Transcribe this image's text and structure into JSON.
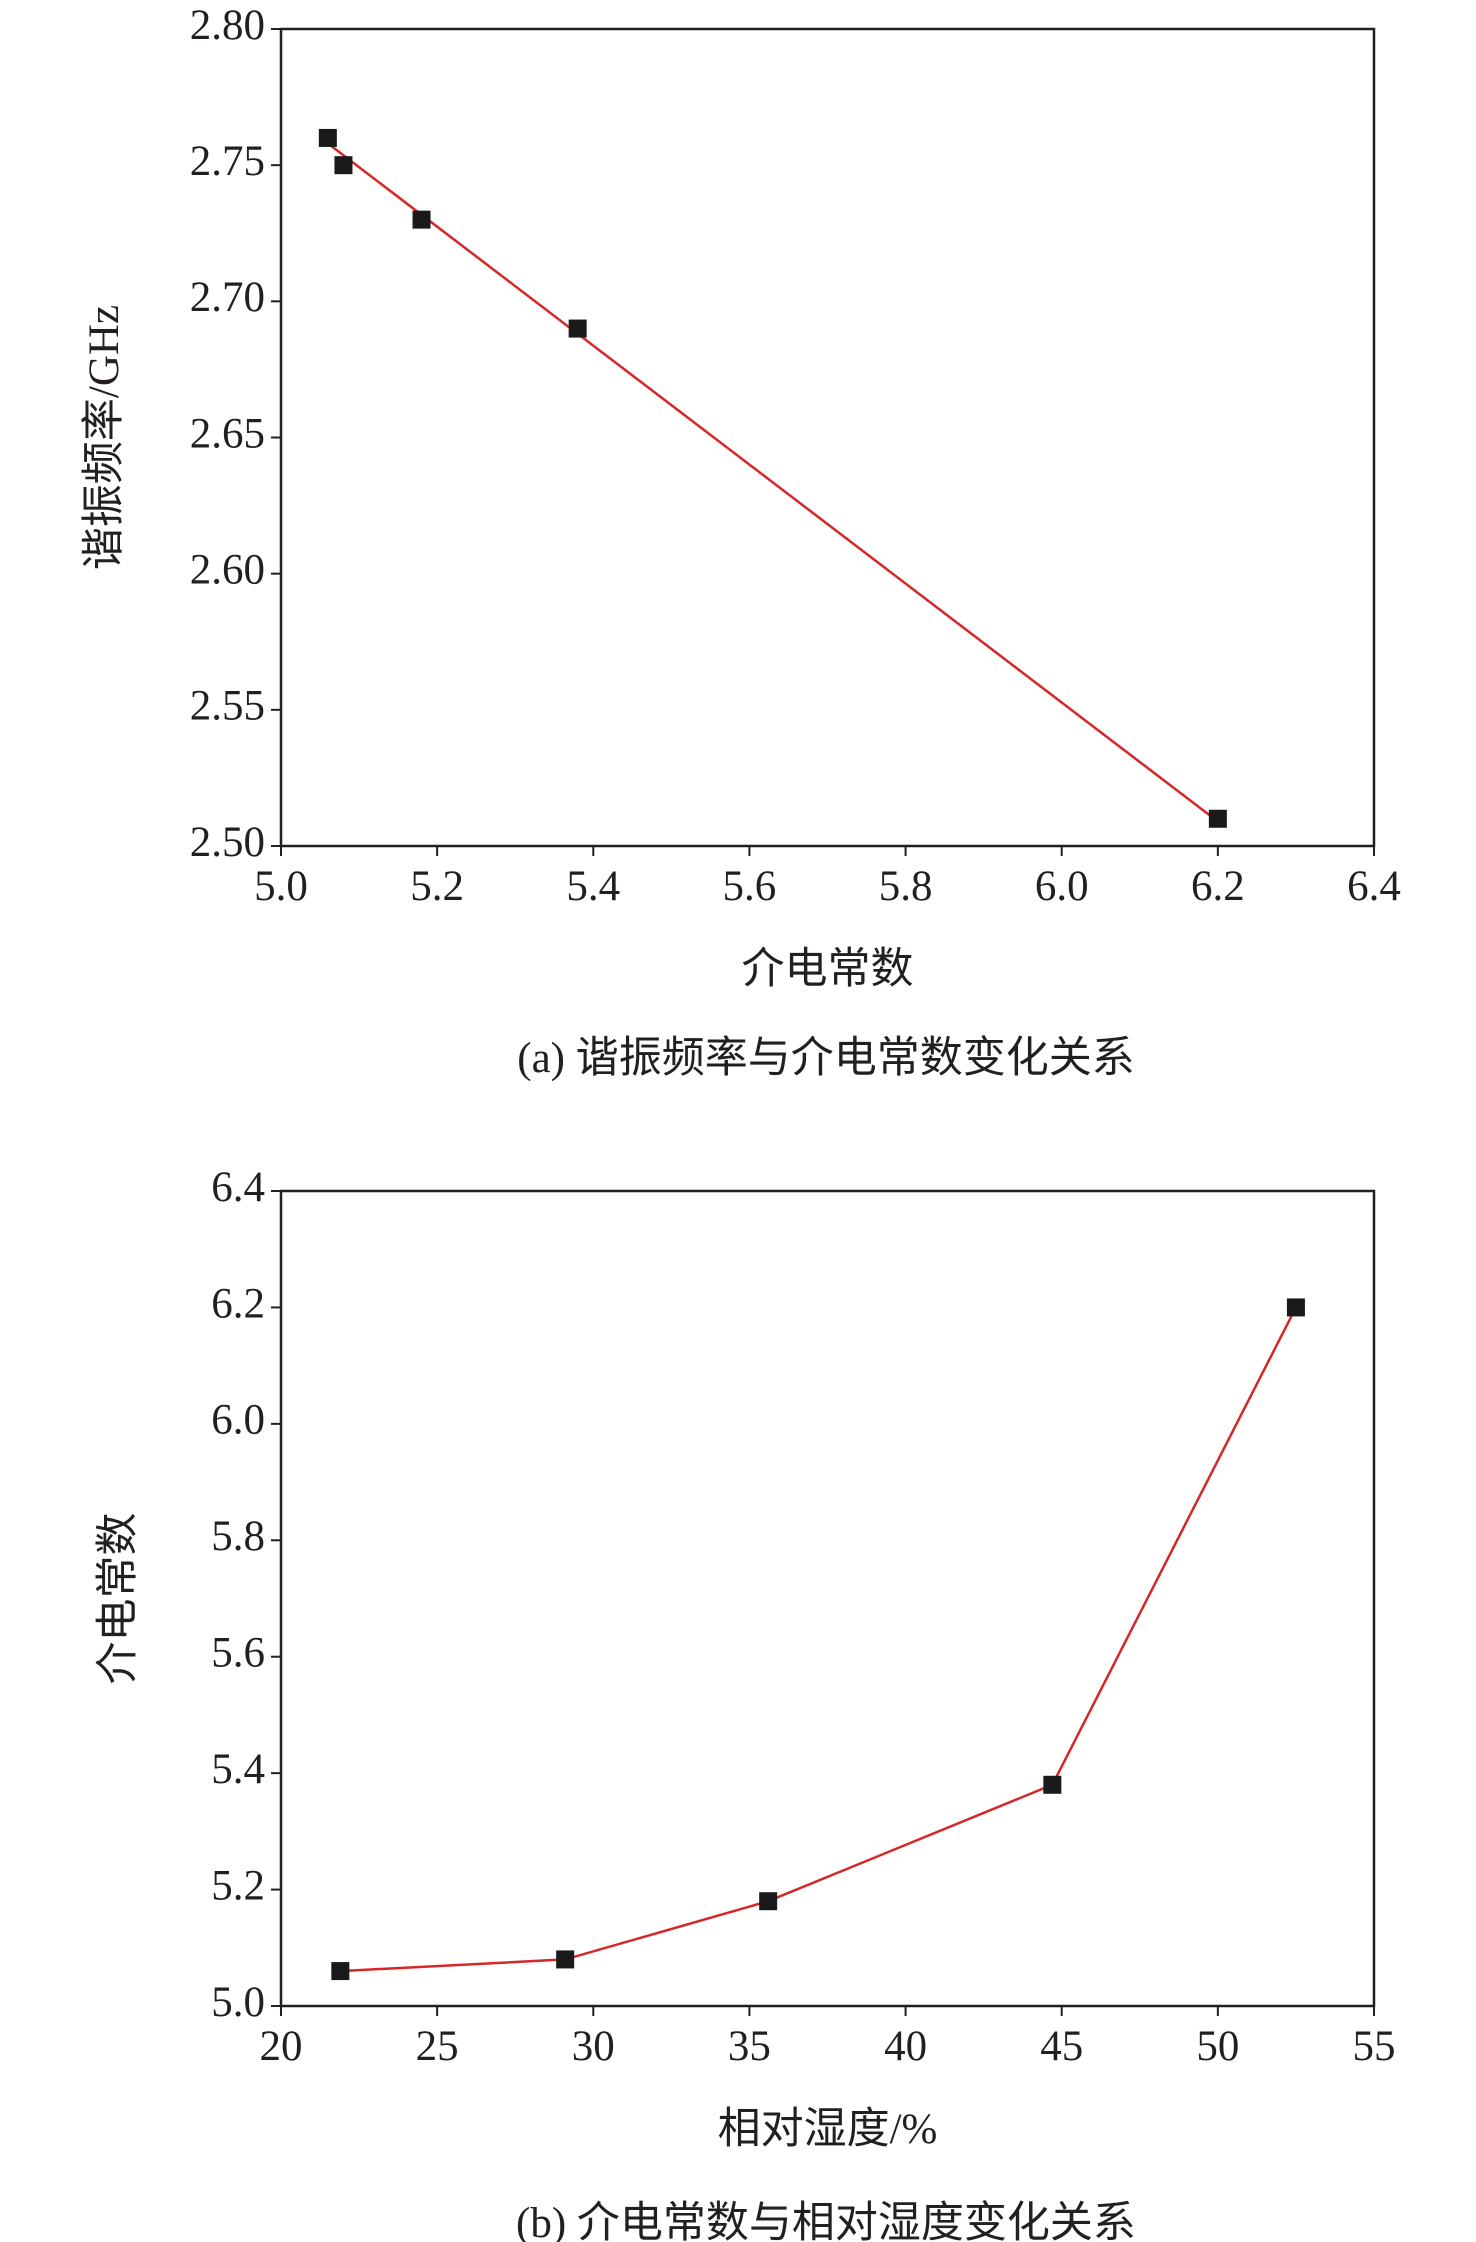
{
  "chart_data": [
    {
      "type": "scatter",
      "ylabel": "谐振频率/GHz",
      "xlabel": "介电常数",
      "caption": "(a) 谐振频率与介电常数变化关系",
      "x": [
        5.06,
        5.08,
        5.18,
        5.38,
        6.2
      ],
      "series": [
        {
          "color": "#1a1a1a",
          "values": [
            2.76,
            2.75,
            2.73,
            2.69,
            2.51
          ]
        }
      ],
      "fit_line": {
        "color": "#d62728",
        "x": [
          5.06,
          6.2
        ],
        "values": [
          2.758,
          2.509
        ]
      },
      "xlim": [
        5.0,
        6.4
      ],
      "xticks": [
        {
          "value": 5.0,
          "label": "5.0"
        },
        5.2,
        5.4,
        5.6,
        5.8,
        {
          "value": 6.0,
          "label": "6.0"
        },
        6.2,
        6.4
      ],
      "ylim": [
        2.5,
        2.8
      ],
      "yticks": [
        {
          "value": 2.5,
          "label": "2.50"
        },
        2.55,
        {
          "value": 2.6,
          "label": "2.60"
        },
        2.65,
        {
          "value": 2.7,
          "label": "2.70"
        },
        2.75,
        {
          "value": 2.8,
          "label": "2.80"
        }
      ]
    },
    {
      "type": "line",
      "ylabel": "介电常数",
      "xlabel": "相对湿度/%",
      "caption": "(b) 介电常数与相对湿度变化关系",
      "x": [
        21.9,
        29.1,
        35.6,
        44.7,
        52.5
      ],
      "series": [
        {
          "color": "#1a1a1a",
          "line_color": "#d62728",
          "values": [
            5.06,
            5.08,
            5.18,
            5.38,
            6.2
          ]
        }
      ],
      "xlim": [
        20,
        55
      ],
      "xticks": [
        20,
        25,
        30,
        35,
        40,
        45,
        50,
        55
      ],
      "ylim": [
        5.0,
        6.4
      ],
      "yticks": [
        {
          "value": 5.0,
          "label": "5.0"
        },
        5.2,
        5.4,
        5.6,
        5.8,
        {
          "value": 6.0,
          "label": "6.0"
        },
        6.2,
        6.4
      ]
    }
  ]
}
